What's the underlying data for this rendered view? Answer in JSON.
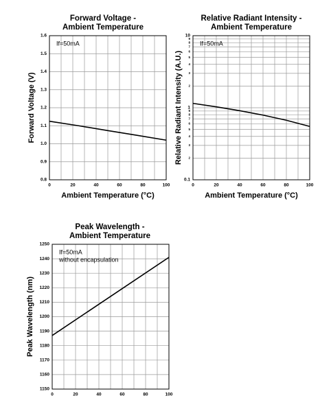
{
  "chart_data": [
    {
      "type": "line",
      "title": [
        "Forward Voltage -",
        "Ambient Temperature"
      ],
      "x_label": "Ambient Temperature (°C)",
      "y_label": "Forward Voltage (V)",
      "annotations": [
        "If=50mA"
      ],
      "x": [
        0,
        25,
        50,
        75,
        100
      ],
      "values": [
        1.125,
        1.1,
        1.073,
        1.047,
        1.02
      ],
      "color": "#000000",
      "xlim": [
        0,
        100
      ],
      "xticks": [
        0,
        20,
        40,
        60,
        80,
        100
      ],
      "minor_xticks": [
        10,
        30,
        50,
        70,
        90
      ],
      "ylim": [
        0.8,
        1.6
      ],
      "yticks": [
        0.8,
        0.9,
        {
          "value": 1,
          "label": "1.0"
        },
        1.1,
        1.2,
        1.3,
        1.4,
        1.5,
        1.6
      ],
      "log": false,
      "grid": true
    },
    {
      "type": "line",
      "title": [
        "Relative Radiant Intensity -",
        "Ambient Temperature"
      ],
      "x_label": "Ambient Temperature (°C)",
      "y_label": "Relative Radiant Intensity (A.U.)",
      "annotations": [
        "If=50mA"
      ],
      "x": [
        0,
        20,
        40,
        60,
        80,
        100
      ],
      "values": [
        1.15,
        1.03,
        0.91,
        0.79,
        0.67,
        0.55
      ],
      "color": "#000000",
      "xlim": [
        0,
        100
      ],
      "xticks": [
        0,
        20,
        40,
        60,
        80,
        100
      ],
      "minor_xticks": [
        10,
        30,
        50,
        70,
        90
      ],
      "ylim": [
        0.1,
        10
      ],
      "yticks": [
        0.1,
        {
          "value": 0.2,
          "label": "2"
        },
        {
          "value": 0.3,
          "label": "3"
        },
        {
          "value": 0.4,
          "label": "4"
        },
        {
          "value": 0.5,
          "label": "5"
        },
        {
          "value": 0.6,
          "label": "6"
        },
        {
          "value": 0.7,
          "label": "7"
        },
        {
          "value": 0.8,
          "label": "8"
        },
        {
          "value": 0.9,
          "label": "9"
        },
        1,
        {
          "value": 2,
          "label": "2"
        },
        {
          "value": 3,
          "label": "3"
        },
        {
          "value": 4,
          "label": "4"
        },
        {
          "value": 5,
          "label": "5"
        },
        {
          "value": 6,
          "label": "6"
        },
        {
          "value": 7,
          "label": "7"
        },
        {
          "value": 8,
          "label": "8"
        },
        {
          "value": 9,
          "label": "9"
        },
        10
      ],
      "log": true,
      "grid": true
    },
    {
      "type": "line",
      "title": [
        "Peak Wavelength -",
        "Ambient Temperature"
      ],
      "y_label": "Peak Wavelength (nm)",
      "annotations": [
        "If=50mA",
        "without encapsulation"
      ],
      "x": [
        0,
        100
      ],
      "values": [
        1187,
        1241
      ],
      "color": "#000000",
      "xlim": [
        0,
        100
      ],
      "xticks": [
        0,
        20,
        40,
        60,
        80,
        100
      ],
      "minor_xticks": [
        10,
        30,
        50,
        70,
        90
      ],
      "ylim": [
        1150,
        1250
      ],
      "yticks": [
        1150,
        1160,
        1170,
        1180,
        1190,
        1200,
        1210,
        1220,
        1230,
        1240,
        1250
      ],
      "log": false,
      "grid": true
    }
  ]
}
